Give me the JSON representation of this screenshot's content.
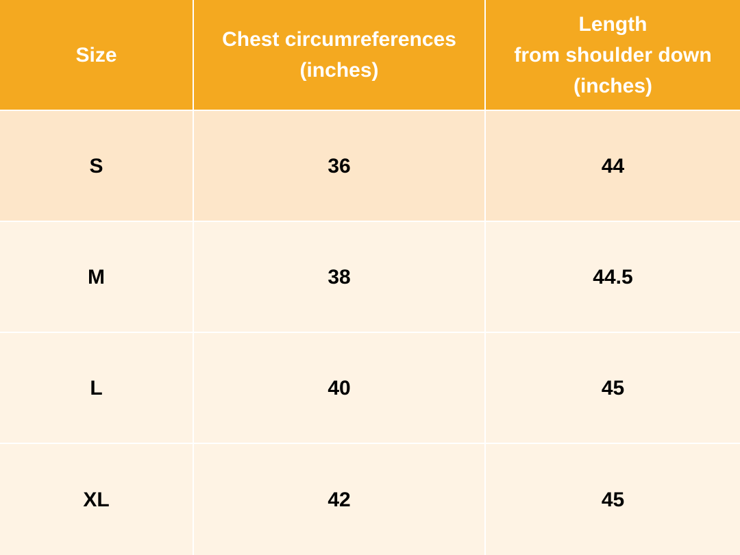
{
  "table": {
    "header": [
      "Size",
      "Chest circumreferences\n(inches)",
      "Length\nfrom shoulder down\n(inches)"
    ],
    "rows": [
      [
        "S",
        36,
        44
      ],
      [
        "M",
        38,
        44.5
      ],
      [
        "L",
        40,
        45
      ],
      [
        "XL",
        42,
        45
      ]
    ]
  }
}
